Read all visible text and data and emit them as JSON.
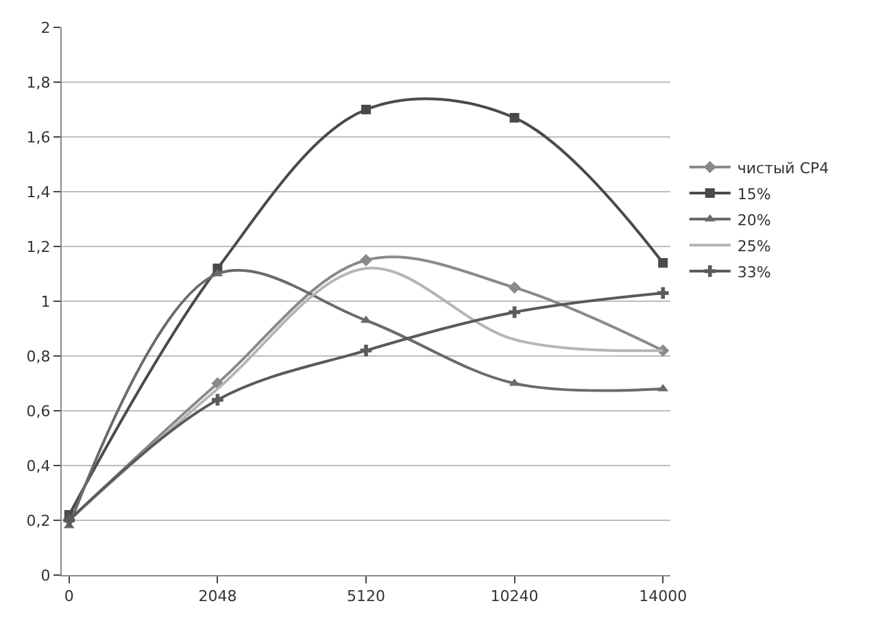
{
  "chart_data": {
    "type": "line",
    "categories": [
      "0",
      "2048",
      "5120",
      "10240",
      "14000"
    ],
    "series": [
      {
        "name": "чистый CP4",
        "color": "#8a8a8a",
        "marker": "diamond",
        "values": [
          0.2,
          0.7,
          1.15,
          1.05,
          0.82
        ]
      },
      {
        "name": "15%",
        "color": "#4a4a4a",
        "marker": "square",
        "values": [
          0.22,
          1.12,
          1.7,
          1.67,
          1.14
        ]
      },
      {
        "name": "20%",
        "color": "#6a6a6a",
        "marker": "triangle",
        "values": [
          0.18,
          1.1,
          0.93,
          0.7,
          0.68
        ]
      },
      {
        "name": "25%",
        "color": "#b5b5b5",
        "marker": "none",
        "values": [
          0.2,
          0.68,
          1.12,
          0.86,
          0.82
        ]
      },
      {
        "name": "33%",
        "color": "#5a5a5a",
        "marker": "cross",
        "values": [
          0.2,
          0.64,
          0.82,
          0.96,
          1.03
        ]
      }
    ],
    "ylim": [
      0,
      2
    ],
    "yticks": [
      0,
      {
        "value": 0.2,
        "label": "0,2"
      },
      {
        "value": 0.4,
        "label": "0,4"
      },
      {
        "value": 0.6,
        "label": "0,6"
      },
      {
        "value": 0.8,
        "label": "0,8"
      },
      1,
      {
        "value": 1.2,
        "label": "1,2"
      },
      {
        "value": 1.4,
        "label": "1,4"
      },
      {
        "value": 1.6,
        "label": "1,6"
      },
      {
        "value": 1.8,
        "label": "1,8"
      },
      2
    ],
    "grid": "y",
    "legend": "right",
    "line_style": "solid"
  }
}
